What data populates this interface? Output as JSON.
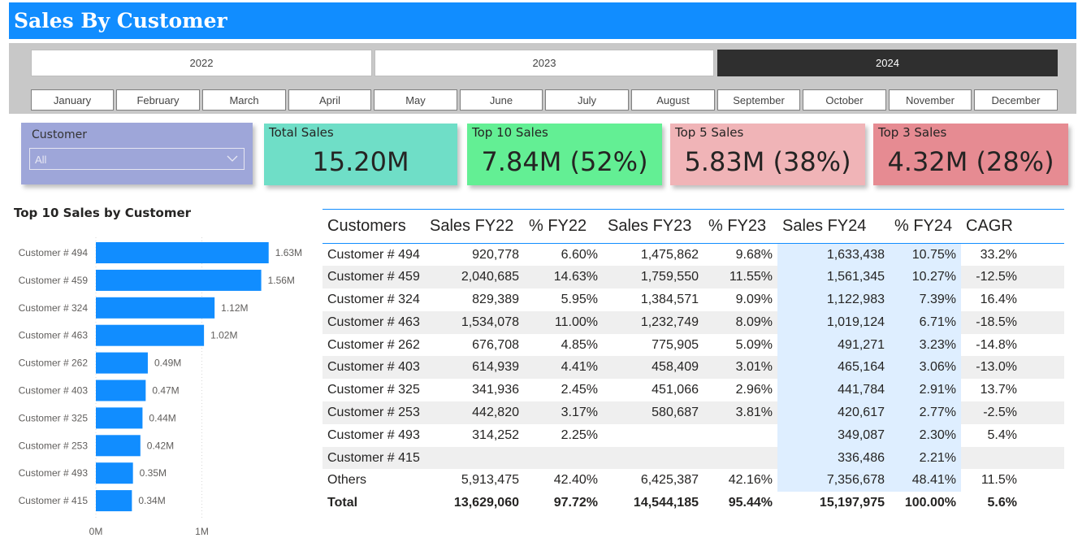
{
  "header": {
    "title": "Sales By Customer"
  },
  "years": [
    {
      "label": "2022",
      "active": false
    },
    {
      "label": "2023",
      "active": false
    },
    {
      "label": "2024",
      "active": true
    }
  ],
  "months": [
    "January",
    "February",
    "March",
    "April",
    "May",
    "June",
    "July",
    "August",
    "September",
    "October",
    "November",
    "December"
  ],
  "customer_slicer": {
    "label": "Customer",
    "value": "All"
  },
  "kpis": [
    {
      "title": "Total Sales",
      "value": "15.20M",
      "color": "#6fdec7"
    },
    {
      "title": "Top 10 Sales",
      "value": "7.84M (52%)",
      "color": "#63ef94"
    },
    {
      "title": "Top 5 Sales",
      "value": "5.83M (38%)",
      "color": "#f0b4b7"
    },
    {
      "title": "Top 3 Sales",
      "value": "4.32M (28%)",
      "color": "#e68b92"
    }
  ],
  "chart_data": {
    "type": "bar",
    "orientation": "horizontal",
    "title": "Top 10 Sales by Customer",
    "categories": [
      "Customer # 494",
      "Customer # 459",
      "Customer # 324",
      "Customer # 463",
      "Customer # 262",
      "Customer # 403",
      "Customer # 325",
      "Customer # 253",
      "Customer # 493",
      "Customer # 415"
    ],
    "values": [
      1.63,
      1.56,
      1.12,
      1.02,
      0.49,
      0.47,
      0.44,
      0.42,
      0.35,
      0.34
    ],
    "data_labels": [
      "1.63M",
      "1.56M",
      "1.12M",
      "1.02M",
      "0.49M",
      "0.47M",
      "0.44M",
      "0.42M",
      "0.35M",
      "0.34M"
    ],
    "x_ticks": [
      0,
      1
    ],
    "x_tick_labels": [
      "0M",
      "1M"
    ],
    "xlim": [
      0,
      2.05
    ],
    "bar_color": "#118dff",
    "grid": true
  },
  "table": {
    "headers": [
      "Customers",
      "Sales FY22",
      "% FY22",
      "Sales FY23",
      "% FY23",
      "Sales FY24",
      "% FY24",
      "CAGR"
    ],
    "rows": [
      [
        "Customer # 494",
        "920,778",
        "6.60%",
        "1,475,862",
        "9.68%",
        "1,633,438",
        "10.75%",
        "33.2%"
      ],
      [
        "Customer # 459",
        "2,040,685",
        "14.63%",
        "1,759,550",
        "11.55%",
        "1,561,345",
        "10.27%",
        "-12.5%"
      ],
      [
        "Customer # 324",
        "829,389",
        "5.95%",
        "1,384,571",
        "9.09%",
        "1,122,983",
        "7.39%",
        "16.4%"
      ],
      [
        "Customer # 463",
        "1,534,078",
        "11.00%",
        "1,232,749",
        "8.09%",
        "1,019,124",
        "6.71%",
        "-18.5%"
      ],
      [
        "Customer # 262",
        "676,708",
        "4.85%",
        "775,905",
        "5.09%",
        "491,271",
        "3.23%",
        "-14.8%"
      ],
      [
        "Customer # 403",
        "614,939",
        "4.41%",
        "458,409",
        "3.01%",
        "465,164",
        "3.06%",
        "-13.0%"
      ],
      [
        "Customer # 325",
        "341,936",
        "2.45%",
        "451,066",
        "2.96%",
        "441,784",
        "2.91%",
        "13.7%"
      ],
      [
        "Customer # 253",
        "442,820",
        "3.17%",
        "580,687",
        "3.81%",
        "420,617",
        "2.77%",
        "-2.5%"
      ],
      [
        "Customer # 493",
        "314,252",
        "2.25%",
        "",
        "",
        "349,087",
        "2.30%",
        "5.4%"
      ],
      [
        "Customer # 415",
        "",
        "",
        "",
        "",
        "336,486",
        "2.21%",
        ""
      ],
      [
        "Others",
        "5,913,475",
        "42.40%",
        "6,425,387",
        "42.16%",
        "7,356,678",
        "48.41%",
        "11.5%"
      ]
    ],
    "total": [
      "Total",
      "13,629,060",
      "97.72%",
      "14,544,185",
      "95.44%",
      "15,197,975",
      "100.00%",
      "5.6%"
    ]
  }
}
